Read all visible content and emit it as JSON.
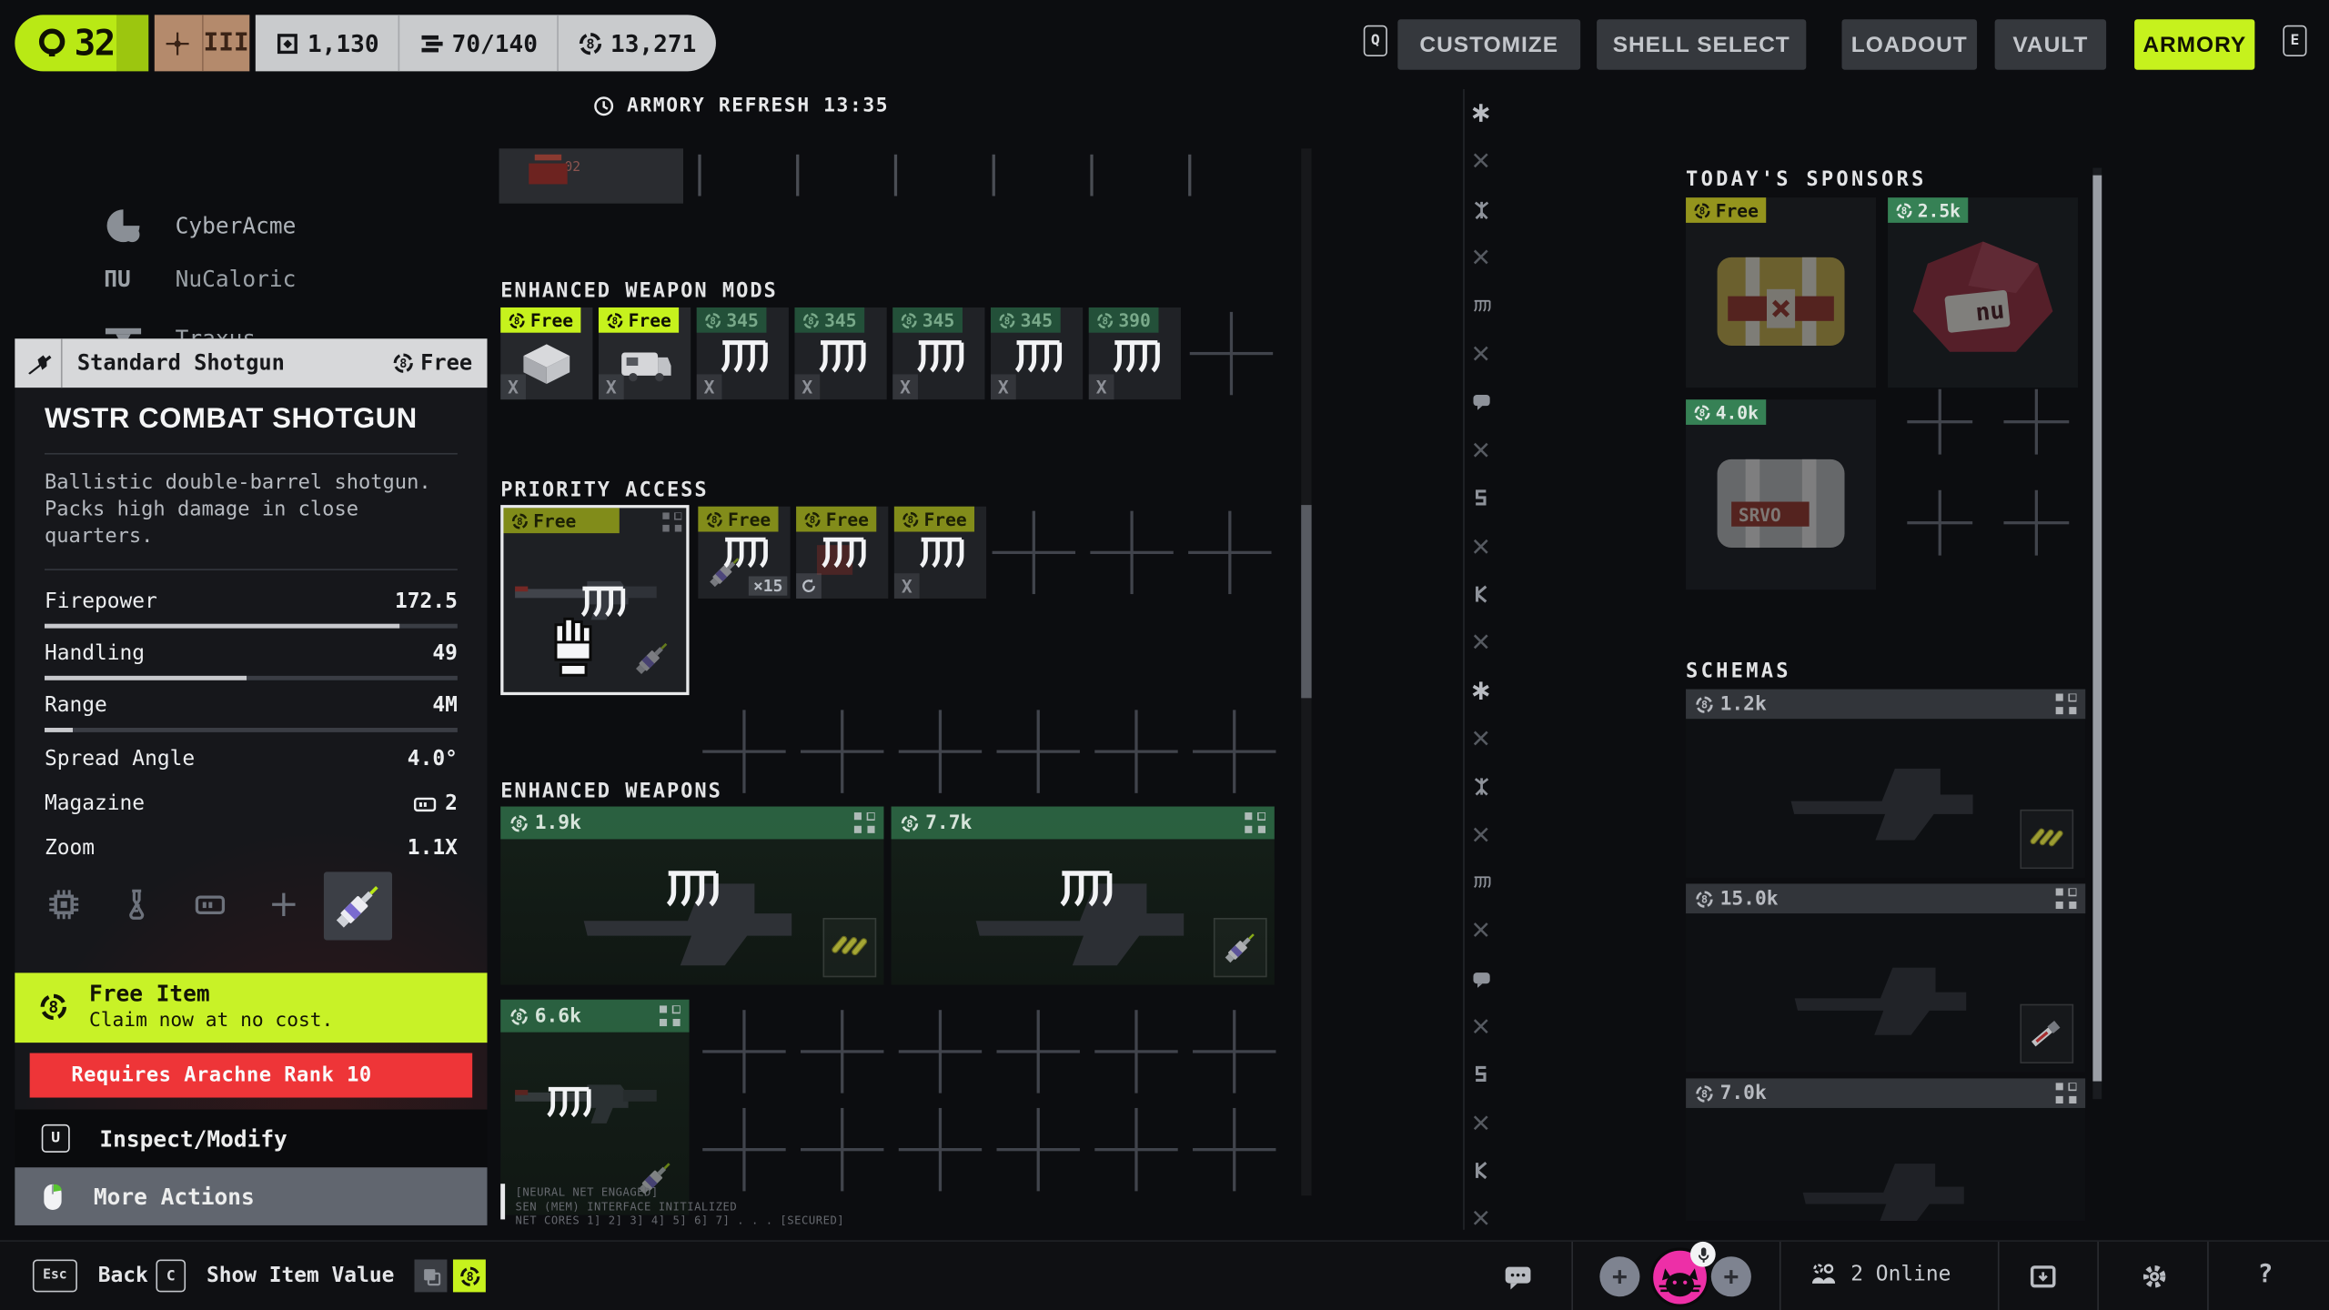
{
  "colors": {
    "accent": "#c6f21d",
    "alert_red": "#ee3236",
    "price_green": "#2f8653",
    "rank_tan": "#b48a6c"
  },
  "topbar": {
    "level": "32",
    "rank": "III",
    "currencies": [
      {
        "icon": "cube-icon",
        "value": "1,130"
      },
      {
        "icon": "stack-icon",
        "value": "70/140"
      },
      {
        "icon": "coin-icon",
        "value": "13,271"
      }
    ],
    "key_hint_left": "Q",
    "key_hint_right": "E",
    "nav": [
      {
        "label": "CUSTOMIZE"
      },
      {
        "label": "SHELL SELECT"
      },
      {
        "label": "LOADOUT"
      },
      {
        "label": "VAULT"
      },
      {
        "label": "ARMORY"
      }
    ]
  },
  "armory": {
    "refresh_label": "ARMORY REFRESH",
    "refresh_time": "13:35",
    "partial_item_label": "02"
  },
  "sponsor_list": [
    {
      "name": "CyberAcme"
    },
    {
      "name": "NuCaloric"
    },
    {
      "name": "Traxus"
    }
  ],
  "tooltip": {
    "category": "Standard Shotgun",
    "price": "Free",
    "title": "WSTR COMBAT SHOTGUN",
    "description": "Ballistic double-barrel shotgun. Packs high damage in close quarters.",
    "stats": [
      {
        "label": "Firepower",
        "value": "172.5",
        "bar": 86
      },
      {
        "label": "Handling",
        "value": "49",
        "bar": 49
      },
      {
        "label": "Range",
        "value": "4M",
        "bar": 7
      },
      {
        "label": "Spread Angle",
        "value": "4.0°"
      },
      {
        "label": "Magazine",
        "value": "2"
      },
      {
        "label": "Zoom",
        "value": "1.1X"
      }
    ],
    "free_banner": {
      "title": "Free Item",
      "subtitle": "Claim now at no cost."
    },
    "requirement": "Requires Arachne Rank 10",
    "actions": [
      {
        "key": "U",
        "label": "Inspect/Modify"
      },
      {
        "key": "mouse",
        "label": "More Actions"
      }
    ]
  },
  "sections": {
    "mods": {
      "title": "ENHANCED WEAPON MODS",
      "x_mark": "X",
      "items": [
        {
          "price": "Free"
        },
        {
          "price": "Free"
        },
        {
          "price": "345"
        },
        {
          "price": "345"
        },
        {
          "price": "345"
        },
        {
          "price": "345"
        },
        {
          "price": "390"
        }
      ]
    },
    "priority": {
      "title": "PRIORITY ACCESS",
      "featured": {
        "price": "Free"
      },
      "items": [
        {
          "price": "Free",
          "qty": "×15"
        },
        {
          "price": "Free"
        },
        {
          "price": "Free",
          "x_mark": "X"
        }
      ]
    },
    "weapons": {
      "title": "ENHANCED WEAPONS",
      "items": [
        {
          "price": "1.9k"
        },
        {
          "price": "7.7k"
        },
        {
          "price": "6.6k"
        }
      ]
    }
  },
  "terminal": {
    "line1": "[NEURAL NET ENGAGED]",
    "line2": "SEN (MEM) INTERFACE INITIALIZED",
    "line3": "NET CORES 1] 2] 3] 4] 5] 6] 7] . . . [SECURED]"
  },
  "sponsors_panel": {
    "title": "TODAY'S SPONSORS",
    "items": [
      {
        "price": "Free"
      },
      {
        "price": "2.5k"
      },
      {
        "price": "4.0k"
      }
    ]
  },
  "schemas_panel": {
    "title": "SCHEMAS",
    "items": [
      {
        "price": "1.2k"
      },
      {
        "price": "15.0k"
      },
      {
        "price": "7.0k"
      }
    ]
  },
  "bottombar": {
    "back_key": "Esc",
    "back_label": "Back",
    "value_key": "C",
    "value_label": "Show Item Value",
    "online_label": "2 Online",
    "help_label": "?"
  }
}
